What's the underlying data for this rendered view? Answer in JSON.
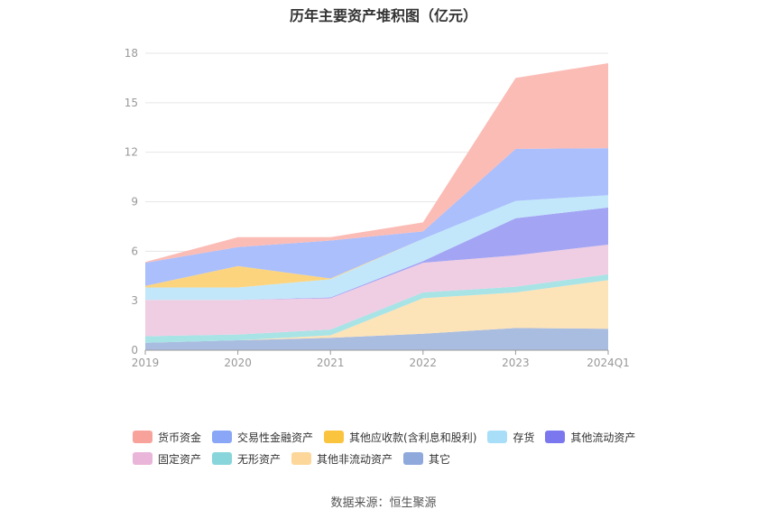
{
  "chart_data": {
    "type": "area",
    "title": "历年主要资产堆积图（亿元）",
    "categories": [
      "2019",
      "2020",
      "2021",
      "2022",
      "2023",
      "2024Q1"
    ],
    "ylim": [
      0,
      18
    ],
    "yticks": [
      0,
      3,
      6,
      9,
      12,
      15,
      18
    ],
    "stacked": true,
    "grid": true,
    "legend_position": "bottom",
    "series": [
      {
        "name": "其它",
        "color": "#a9bde0",
        "values": [
          0.45,
          0.6,
          0.75,
          1.0,
          1.35,
          1.3
        ]
      },
      {
        "name": "其他非流动资产",
        "color": "#fde3b8",
        "values": [
          0.0,
          0.0,
          0.15,
          2.15,
          2.15,
          2.95
        ]
      },
      {
        "name": "无形资产",
        "color": "#a8e3e6",
        "values": [
          0.4,
          0.35,
          0.35,
          0.35,
          0.35,
          0.35
        ]
      },
      {
        "name": "固定资产",
        "color": "#efcde3",
        "values": [
          2.2,
          2.1,
          1.9,
          1.8,
          1.9,
          1.8
        ]
      },
      {
        "name": "其他流动资产",
        "color": "#a3a5f4",
        "values": [
          0.0,
          0.0,
          0.05,
          0.1,
          2.25,
          2.25
        ]
      },
      {
        "name": "存货",
        "color": "#c2e7fb",
        "values": [
          0.75,
          0.75,
          1.1,
          1.35,
          1.05,
          0.75
        ]
      },
      {
        "name": "其他应收款(含利息和股利)",
        "color": "#fdd47e",
        "values": [
          0.1,
          1.3,
          0.05,
          0.0,
          0.0,
          0.0
        ]
      },
      {
        "name": "交易性金融资产",
        "color": "#aabffc",
        "values": [
          1.4,
          1.15,
          2.3,
          0.45,
          3.15,
          2.85
        ]
      },
      {
        "name": "货币资金",
        "color": "#fbbcb6",
        "values": [
          0.05,
          0.6,
          0.2,
          0.55,
          4.3,
          5.15
        ]
      }
    ]
  },
  "legend": {
    "rows": [
      [
        {
          "name": "货币资金",
          "color": "#f8a29c"
        },
        {
          "name": "交易性金融资产",
          "color": "#8aa6f6"
        },
        {
          "name": "其他应收款(含利息和股利)",
          "color": "#fbc43e"
        },
        {
          "name": "存货",
          "color": "#a9def9"
        },
        {
          "name": "其他流动资产",
          "color": "#7b78ef"
        }
      ],
      [
        {
          "name": "固定资产",
          "color": "#e9b5d8"
        },
        {
          "name": "无形资产",
          "color": "#88d6db"
        },
        {
          "name": "其他非流动资产",
          "color": "#fdd69a"
        },
        {
          "name": "其它",
          "color": "#8fa9dc"
        }
      ]
    ]
  },
  "source": "数据来源：恒生聚源"
}
